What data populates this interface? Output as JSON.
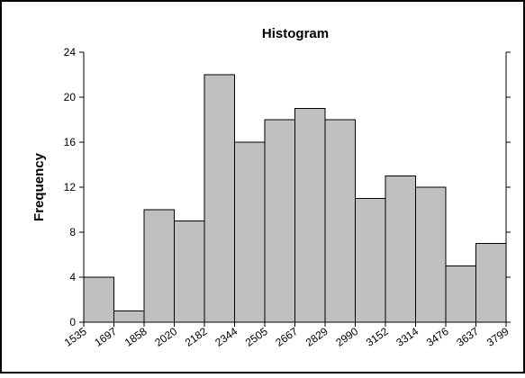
{
  "chart_data": {
    "type": "bar",
    "title": "Histogram",
    "xlabel": "",
    "ylabel": "Frequency",
    "bin_edges": [
      1535,
      1697,
      1858,
      2020,
      2182,
      2344,
      2505,
      2667,
      2829,
      2990,
      3152,
      3314,
      3476,
      3637,
      3799
    ],
    "x_tick_labels": [
      "1535",
      "1697",
      "1858",
      "2020",
      "2182",
      "2344",
      "2505",
      "2667",
      "2829",
      "2990",
      "3152",
      "3314",
      "3476",
      "3637",
      "3799"
    ],
    "values": [
      4,
      1,
      10,
      9,
      22,
      16,
      18,
      19,
      18,
      11,
      13,
      12,
      5,
      7
    ],
    "ylim": [
      0,
      24
    ],
    "y_ticks": [
      0,
      4,
      8,
      12,
      16,
      20,
      24
    ],
    "y_tick_labels": [
      "0",
      "4",
      "8",
      "12",
      "16",
      "20",
      "24"
    ],
    "grid": false,
    "bar_color": "#c0c0c0",
    "bar_edge_color": "#000000",
    "frame_color": "#000000",
    "background": "#ffffff"
  }
}
